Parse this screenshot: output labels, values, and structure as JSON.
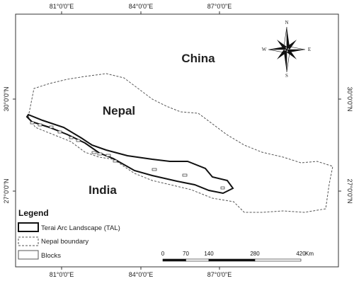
{
  "graticule": {
    "top": [
      "81°0'0\"E",
      "84°0'0\"E",
      "87°0'0\"E"
    ],
    "bottom": [
      "81°0'0\"E",
      "84°0'0\"E",
      "87°0'0\"E"
    ],
    "left": [
      "30°0'0\"N",
      "27°0'0\"N"
    ],
    "right": [
      "30°0'0\"N",
      "27°0'0\"N"
    ]
  },
  "places": {
    "china": "China",
    "nepal": "Nepal",
    "india": "India"
  },
  "compass": {
    "n": "N",
    "s": "S",
    "w": "W",
    "e": "E"
  },
  "legend": {
    "title": "Legend",
    "items": [
      "Terai Arc Landscape (TAL)",
      "Nepal boundary",
      "Blocks"
    ]
  },
  "scale_bar": {
    "ticks": [
      0,
      70,
      140,
      280,
      420
    ],
    "unit": "Km"
  }
}
